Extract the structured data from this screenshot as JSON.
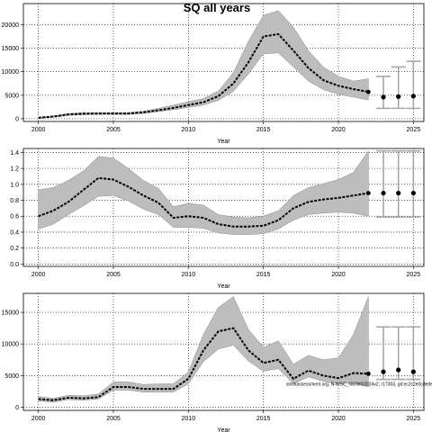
{
  "figure": {
    "title": "SQ all years",
    "footnote": "stockassessment.org, N-WSC_NWWG2024v2, r17303, git:ec2c2e0c8ede"
  },
  "chart_data": [
    {
      "type": "line",
      "name": "recruitment",
      "xlabel": "Year",
      "ylabel": "",
      "xlim": [
        1999,
        2025.7
      ],
      "ylim": [
        -600,
        24500
      ],
      "xticks": [
        2000,
        2005,
        2010,
        2015,
        2020,
        2025
      ],
      "yticks": [
        0,
        5000,
        10000,
        15000,
        20000
      ],
      "ytick_labels": [
        "0",
        "5000",
        "10000",
        "15000",
        "20000"
      ],
      "grid": true,
      "x": [
        2000,
        2001,
        2002,
        2003,
        2004,
        2005,
        2006,
        2007,
        2008,
        2009,
        2010,
        2011,
        2012,
        2013,
        2014,
        2015,
        2016,
        2017,
        2018,
        2019,
        2020,
        2021,
        2022
      ],
      "estimate": [
        200,
        450,
        900,
        1050,
        1100,
        1100,
        1100,
        1350,
        1800,
        2300,
        2900,
        3500,
        4800,
        7500,
        12000,
        17500,
        18000,
        14500,
        10800,
        8200,
        7000,
        6300,
        5700
      ],
      "lower": [
        100,
        300,
        700,
        850,
        900,
        900,
        900,
        1100,
        1500,
        1900,
        2400,
        2900,
        3900,
        5800,
        9500,
        13800,
        14000,
        11000,
        8000,
        6200,
        5200,
        4600,
        4000
      ],
      "upper": [
        300,
        600,
        1100,
        1300,
        1300,
        1300,
        1300,
        1600,
        2200,
        2900,
        3600,
        4300,
        5900,
        9800,
        16500,
        22000,
        23000,
        19500,
        14500,
        11000,
        9000,
        8000,
        8500
      ],
      "forecast": {
        "x": [
          2023,
          2024,
          2025
        ],
        "values": [
          4600,
          4700,
          4800
        ],
        "lower": [
          2200,
          2200,
          2200
        ],
        "upper": [
          9000,
          11000,
          12200
        ]
      }
    },
    {
      "type": "line",
      "name": "fishing-mortality",
      "xlabel": "Year",
      "ylabel": "",
      "xlim": [
        1999,
        2025.7
      ],
      "ylim": [
        -0.03,
        1.45
      ],
      "xticks": [
        2000,
        2005,
        2010,
        2015,
        2020,
        2025
      ],
      "yticks": [
        0.0,
        0.2,
        0.4,
        0.6,
        0.8,
        1.0,
        1.2,
        1.4
      ],
      "ytick_labels": [
        "0.0",
        "0.2",
        "0.4",
        "0.6",
        "0.8",
        "1.0",
        "1.2",
        "1.4"
      ],
      "grid": true,
      "x": [
        2000,
        2001,
        2002,
        2003,
        2004,
        2005,
        2006,
        2007,
        2008,
        2009,
        2010,
        2011,
        2012,
        2013,
        2014,
        2015,
        2016,
        2017,
        2018,
        2019,
        2020,
        2021,
        2022
      ],
      "estimate": [
        0.6,
        0.67,
        0.78,
        0.93,
        1.08,
        1.06,
        0.97,
        0.86,
        0.77,
        0.58,
        0.6,
        0.58,
        0.5,
        0.47,
        0.47,
        0.48,
        0.55,
        0.7,
        0.78,
        0.81,
        0.83,
        0.86,
        0.89
      ],
      "lower": [
        0.44,
        0.5,
        0.62,
        0.73,
        0.85,
        0.86,
        0.79,
        0.69,
        0.62,
        0.46,
        0.46,
        0.45,
        0.39,
        0.37,
        0.37,
        0.38,
        0.44,
        0.55,
        0.62,
        0.64,
        0.65,
        0.64,
        0.6
      ],
      "upper": [
        0.93,
        0.96,
        1.05,
        1.17,
        1.35,
        1.33,
        1.2,
        1.05,
        0.95,
        0.72,
        0.76,
        0.74,
        0.62,
        0.59,
        0.58,
        0.6,
        0.67,
        0.86,
        0.96,
        1.01,
        1.06,
        1.15,
        1.42
      ],
      "forecast": {
        "x": [
          2023,
          2024,
          2025
        ],
        "values": [
          0.89,
          0.89,
          0.89
        ],
        "lower": [
          0.59,
          0.59,
          0.59
        ],
        "upper": [
          1.42,
          1.42,
          1.42
        ]
      }
    },
    {
      "type": "line",
      "name": "ssb",
      "xlabel": "Year",
      "ylabel": "",
      "xlim": [
        1999,
        2025.7
      ],
      "ylim": [
        -500,
        18000
      ],
      "xticks": [
        2000,
        2005,
        2010,
        2015,
        2020,
        2025
      ],
      "yticks": [
        0,
        5000,
        10000,
        15000
      ],
      "ytick_labels": [
        "0",
        "5000",
        "10000",
        "15000"
      ],
      "grid": true,
      "x": [
        2000,
        2001,
        2002,
        2003,
        2004,
        2005,
        2006,
        2007,
        2008,
        2009,
        2010,
        2011,
        2012,
        2013,
        2014,
        2015,
        2016,
        2017,
        2018,
        2019,
        2020,
        2021,
        2022
      ],
      "estimate": [
        1300,
        1100,
        1500,
        1400,
        1600,
        3200,
        3200,
        2900,
        2900,
        2900,
        4500,
        9000,
        12000,
        12500,
        9000,
        7000,
        7500,
        4500,
        5800,
        5000,
        4600,
        5400,
        5300
      ],
      "lower": [
        1000,
        800,
        1200,
        1100,
        1300,
        2700,
        2700,
        2400,
        2400,
        2400,
        3700,
        7200,
        9200,
        9800,
        7300,
        5700,
        6100,
        3700,
        4800,
        4100,
        3700,
        3900,
        3200
      ],
      "upper": [
        1700,
        1400,
        1900,
        1800,
        2100,
        4000,
        4000,
        3600,
        3700,
        3700,
        5600,
        11500,
        15800,
        17500,
        12300,
        9500,
        10500,
        6800,
        8200,
        7500,
        7800,
        11500,
        17500
      ],
      "forecast": {
        "x": [
          2023,
          2024,
          2025
        ],
        "values": [
          5600,
          5900,
          5600
        ],
        "lower": [
          4400,
          4400,
          4400
        ],
        "upper": [
          12700,
          12700,
          12700
        ]
      }
    }
  ]
}
